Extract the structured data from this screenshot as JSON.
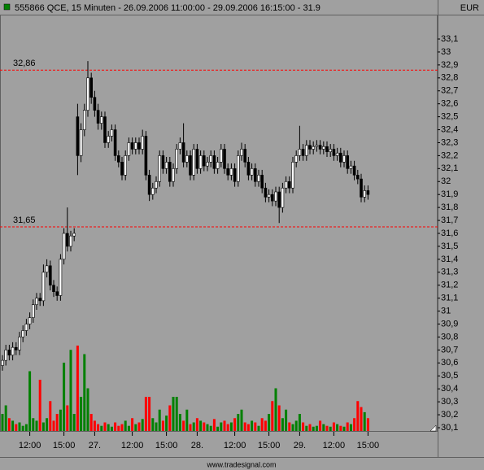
{
  "chart_data": {
    "type": "candlestick",
    "title": "555866 QCE, 15 Minuten - 26.09.2006 11:00:00 - 29.09.2006 16:15:00 - 31.9",
    "currency": "EUR",
    "footer": "www.tradesignal.com",
    "ylim": [
      30.1,
      33.1
    ],
    "yticks": [
      {
        "value": 30.1,
        "label": "30,1"
      },
      {
        "value": 30.2,
        "label": "30,2"
      },
      {
        "value": 30.3,
        "label": "30,3"
      },
      {
        "value": 30.4,
        "label": "30,4"
      },
      {
        "value": 30.5,
        "label": "30,5"
      },
      {
        "value": 30.6,
        "label": "30,6"
      },
      {
        "value": 30.7,
        "label": "30,7"
      },
      {
        "value": 30.8,
        "label": "30,8"
      },
      {
        "value": 30.9,
        "label": "30,9"
      },
      31,
      {
        "value": 31.1,
        "label": "31,1"
      },
      {
        "value": 31.2,
        "label": "31,2"
      },
      {
        "value": 31.3,
        "label": "31,3"
      },
      {
        "value": 31.4,
        "label": "31,4"
      },
      {
        "value": 31.5,
        "label": "31,5"
      },
      {
        "value": 31.6,
        "label": "31,6"
      },
      {
        "value": 31.7,
        "label": "31,7"
      },
      {
        "value": 31.8,
        "label": "31,8"
      },
      {
        "value": 31.9,
        "label": "31,9"
      },
      32,
      {
        "value": 32.1,
        "label": "32,1"
      },
      {
        "value": 32.2,
        "label": "32,2"
      },
      {
        "value": 32.3,
        "label": "32,3"
      },
      {
        "value": 32.4,
        "label": "32,4"
      },
      {
        "value": 32.5,
        "label": "32,5"
      },
      {
        "value": 32.6,
        "label": "32,6"
      },
      {
        "value": 32.7,
        "label": "32,7"
      },
      {
        "value": 32.8,
        "label": "32,8"
      },
      {
        "value": 32.9,
        "label": "32,9"
      },
      33,
      {
        "value": 33.1,
        "label": "33,1"
      }
    ],
    "hlines": [
      {
        "value": 32.86,
        "label": "32,86",
        "color": "#ff0000"
      },
      {
        "value": 31.65,
        "label": "31,65",
        "color": "#ff0000"
      }
    ],
    "up_color": "#008000",
    "down_color": "#ff0000",
    "categories": [
      null,
      null,
      null,
      null,
      null,
      null,
      null,
      null,
      "12:00",
      null,
      null,
      null,
      null,
      null,
      null,
      null,
      null,
      null,
      "15:00",
      null,
      null,
      null,
      null,
      null,
      null,
      null,
      null,
      "27.",
      null,
      null,
      null,
      null,
      null,
      null,
      null,
      null,
      null,
      null,
      "12:00",
      null,
      null,
      null,
      null,
      null,
      null,
      null,
      null,
      null,
      "15:00",
      null,
      null,
      null,
      null,
      null,
      null,
      null,
      null,
      "28.",
      null,
      null,
      null,
      null,
      null,
      null,
      null,
      null,
      null,
      null,
      "12:00",
      null,
      null,
      null,
      null,
      null,
      null,
      null,
      null,
      null,
      "15:00",
      null,
      null,
      null,
      null,
      null,
      null,
      null,
      null,
      "29.",
      null,
      null,
      null,
      null,
      null,
      null,
      null,
      null,
      null,
      "12:00",
      null,
      null,
      null,
      null,
      null,
      null,
      null,
      null,
      null,
      "15:00"
    ],
    "open": [
      30.58,
      30.62,
      30.7,
      30.66,
      30.72,
      30.7,
      30.8,
      30.85,
      30.9,
      30.95,
      31.05,
      31.1,
      31.08,
      31.3,
      31.35,
      31.2,
      31.15,
      31.12,
      31.4,
      31.6,
      31.5,
      31.58,
      32.5,
      32.2,
      32.4,
      32.55,
      32.8,
      32.65,
      32.55,
      32.45,
      32.5,
      32.3,
      32.35,
      32.4,
      32.2,
      32.15,
      32.05,
      32.2,
      32.3,
      32.25,
      32.3,
      32.25,
      32.35,
      32.05,
      31.9,
      31.95,
      32.0,
      32.2,
      32.1,
      32.15,
      32.0,
      32.1,
      32.25,
      32.3,
      32.15,
      32.2,
      32.05,
      32.25,
      32.1,
      32.2,
      32.12,
      32.15,
      32.2,
      32.1,
      32.15,
      32.25,
      32.1,
      32.05,
      32.1,
      32.0,
      32.2,
      32.25,
      32.15,
      32.05,
      32.1,
      32.0,
      32.05,
      31.95,
      31.88,
      31.9,
      31.85,
      31.92,
      31.8,
      31.95,
      32.0,
      31.95,
      32.15,
      32.2,
      32.25,
      32.2,
      32.28,
      32.25,
      32.27,
      32.28,
      32.25,
      32.27,
      32.23,
      32.25,
      32.2,
      32.22,
      32.15,
      32.2,
      32.1,
      32.12,
      32.05,
      32.02,
      31.88,
      31.93
    ],
    "high": [
      30.66,
      30.74,
      30.74,
      30.76,
      30.76,
      30.84,
      30.89,
      30.94,
      30.99,
      31.09,
      31.14,
      31.14,
      31.36,
      31.4,
      31.39,
      31.24,
      31.19,
      31.44,
      31.64,
      31.8,
      31.62,
      31.64,
      32.6,
      32.45,
      32.6,
      32.93,
      32.84,
      32.7,
      32.6,
      32.54,
      32.54,
      32.39,
      32.44,
      32.44,
      32.24,
      32.19,
      32.24,
      32.34,
      32.34,
      32.34,
      32.34,
      32.4,
      32.39,
      32.09,
      31.99,
      32.04,
      32.24,
      32.24,
      32.19,
      32.19,
      32.14,
      32.29,
      32.34,
      32.45,
      32.24,
      32.24,
      32.29,
      32.29,
      32.24,
      32.24,
      32.19,
      32.24,
      32.24,
      32.19,
      32.29,
      32.29,
      32.14,
      32.14,
      32.14,
      32.24,
      32.3,
      32.29,
      32.19,
      32.14,
      32.14,
      32.09,
      32.09,
      31.99,
      31.94,
      31.94,
      31.96,
      31.96,
      31.99,
      32.04,
      32.04,
      32.19,
      32.24,
      32.43,
      32.29,
      32.32,
      32.32,
      32.31,
      32.32,
      32.32,
      32.31,
      32.31,
      32.29,
      32.29,
      32.26,
      32.26,
      32.24,
      32.24,
      32.16,
      32.16,
      32.09,
      32.06,
      31.97,
      31.97
    ],
    "low": [
      30.54,
      30.58,
      30.62,
      30.62,
      30.66,
      30.66,
      30.76,
      30.81,
      30.86,
      30.91,
      31.01,
      31.04,
      31.04,
      31.26,
      31.16,
      31.11,
      31.08,
      31.08,
      31.36,
      31.46,
      31.46,
      31.54,
      32.05,
      32.15,
      32.35,
      32.5,
      32.6,
      32.5,
      32.4,
      32.4,
      32.26,
      32.26,
      32.31,
      32.16,
      32.11,
      32.01,
      32.01,
      32.16,
      32.21,
      32.21,
      32.21,
      32.21,
      32.01,
      31.85,
      31.86,
      31.91,
      31.96,
      32.06,
      32.06,
      31.96,
      31.96,
      32.06,
      32.21,
      32.11,
      32.11,
      32.01,
      32.01,
      32.06,
      32.06,
      32.08,
      32.08,
      32.11,
      32.06,
      32.06,
      32.11,
      32.06,
      32.01,
      32.01,
      31.96,
      31.96,
      32.16,
      32.11,
      32.01,
      32.01,
      31.96,
      31.96,
      31.91,
      31.84,
      31.84,
      31.81,
      31.81,
      31.68,
      31.76,
      31.91,
      31.91,
      31.91,
      32.11,
      32.16,
      32.16,
      32.16,
      32.21,
      32.21,
      32.23,
      32.21,
      32.21,
      32.19,
      32.19,
      32.16,
      32.16,
      32.11,
      32.11,
      32.06,
      32.06,
      32.01,
      31.98,
      31.84,
      31.84,
      31.86
    ],
    "close": [
      30.62,
      30.7,
      30.66,
      30.72,
      30.7,
      30.8,
      30.85,
      30.9,
      30.95,
      31.05,
      31.1,
      31.08,
      31.3,
      31.35,
      31.2,
      31.15,
      31.12,
      31.4,
      31.6,
      31.5,
      31.58,
      31.6,
      32.2,
      32.4,
      32.55,
      32.8,
      32.65,
      32.55,
      32.45,
      32.5,
      32.3,
      32.35,
      32.4,
      32.2,
      32.15,
      32.05,
      32.2,
      32.3,
      32.25,
      32.3,
      32.25,
      32.35,
      32.05,
      31.9,
      31.95,
      32.0,
      32.2,
      32.1,
      32.15,
      32.0,
      32.1,
      32.25,
      32.3,
      32.15,
      32.2,
      32.05,
      32.25,
      32.1,
      32.2,
      32.12,
      32.15,
      32.2,
      32.1,
      32.15,
      32.25,
      32.1,
      32.05,
      32.1,
      32.0,
      32.2,
      32.25,
      32.15,
      32.05,
      32.1,
      32.0,
      32.05,
      31.95,
      31.88,
      31.9,
      31.85,
      31.92,
      31.8,
      31.95,
      32.0,
      31.95,
      32.15,
      32.2,
      32.25,
      32.2,
      32.28,
      32.25,
      32.27,
      32.28,
      32.25,
      32.27,
      32.23,
      32.25,
      32.2,
      32.22,
      32.15,
      32.2,
      32.1,
      32.12,
      32.05,
      32.02,
      31.88,
      31.93,
      31.9
    ],
    "volume": [
      20,
      30,
      15,
      12,
      8,
      10,
      6,
      8,
      70,
      15,
      12,
      60,
      10,
      15,
      35,
      12,
      20,
      25,
      80,
      30,
      95,
      20,
      100,
      40,
      90,
      50,
      20,
      12,
      8,
      6,
      10,
      8,
      5,
      10,
      6,
      8,
      12,
      6,
      15,
      8,
      10,
      14,
      40,
      40,
      15,
      10,
      25,
      12,
      18,
      30,
      40,
      40,
      20,
      12,
      25,
      8,
      10,
      15,
      12,
      10,
      8,
      6,
      14,
      5,
      10,
      12,
      8,
      10,
      15,
      20,
      25,
      10,
      8,
      12,
      10,
      6,
      15,
      12,
      20,
      35,
      50,
      30,
      15,
      25,
      10,
      8,
      12,
      20,
      10,
      6,
      8,
      5,
      6,
      12,
      8,
      6,
      5,
      10,
      8,
      6,
      5,
      10,
      8,
      15,
      35,
      28,
      22,
      15
    ]
  }
}
